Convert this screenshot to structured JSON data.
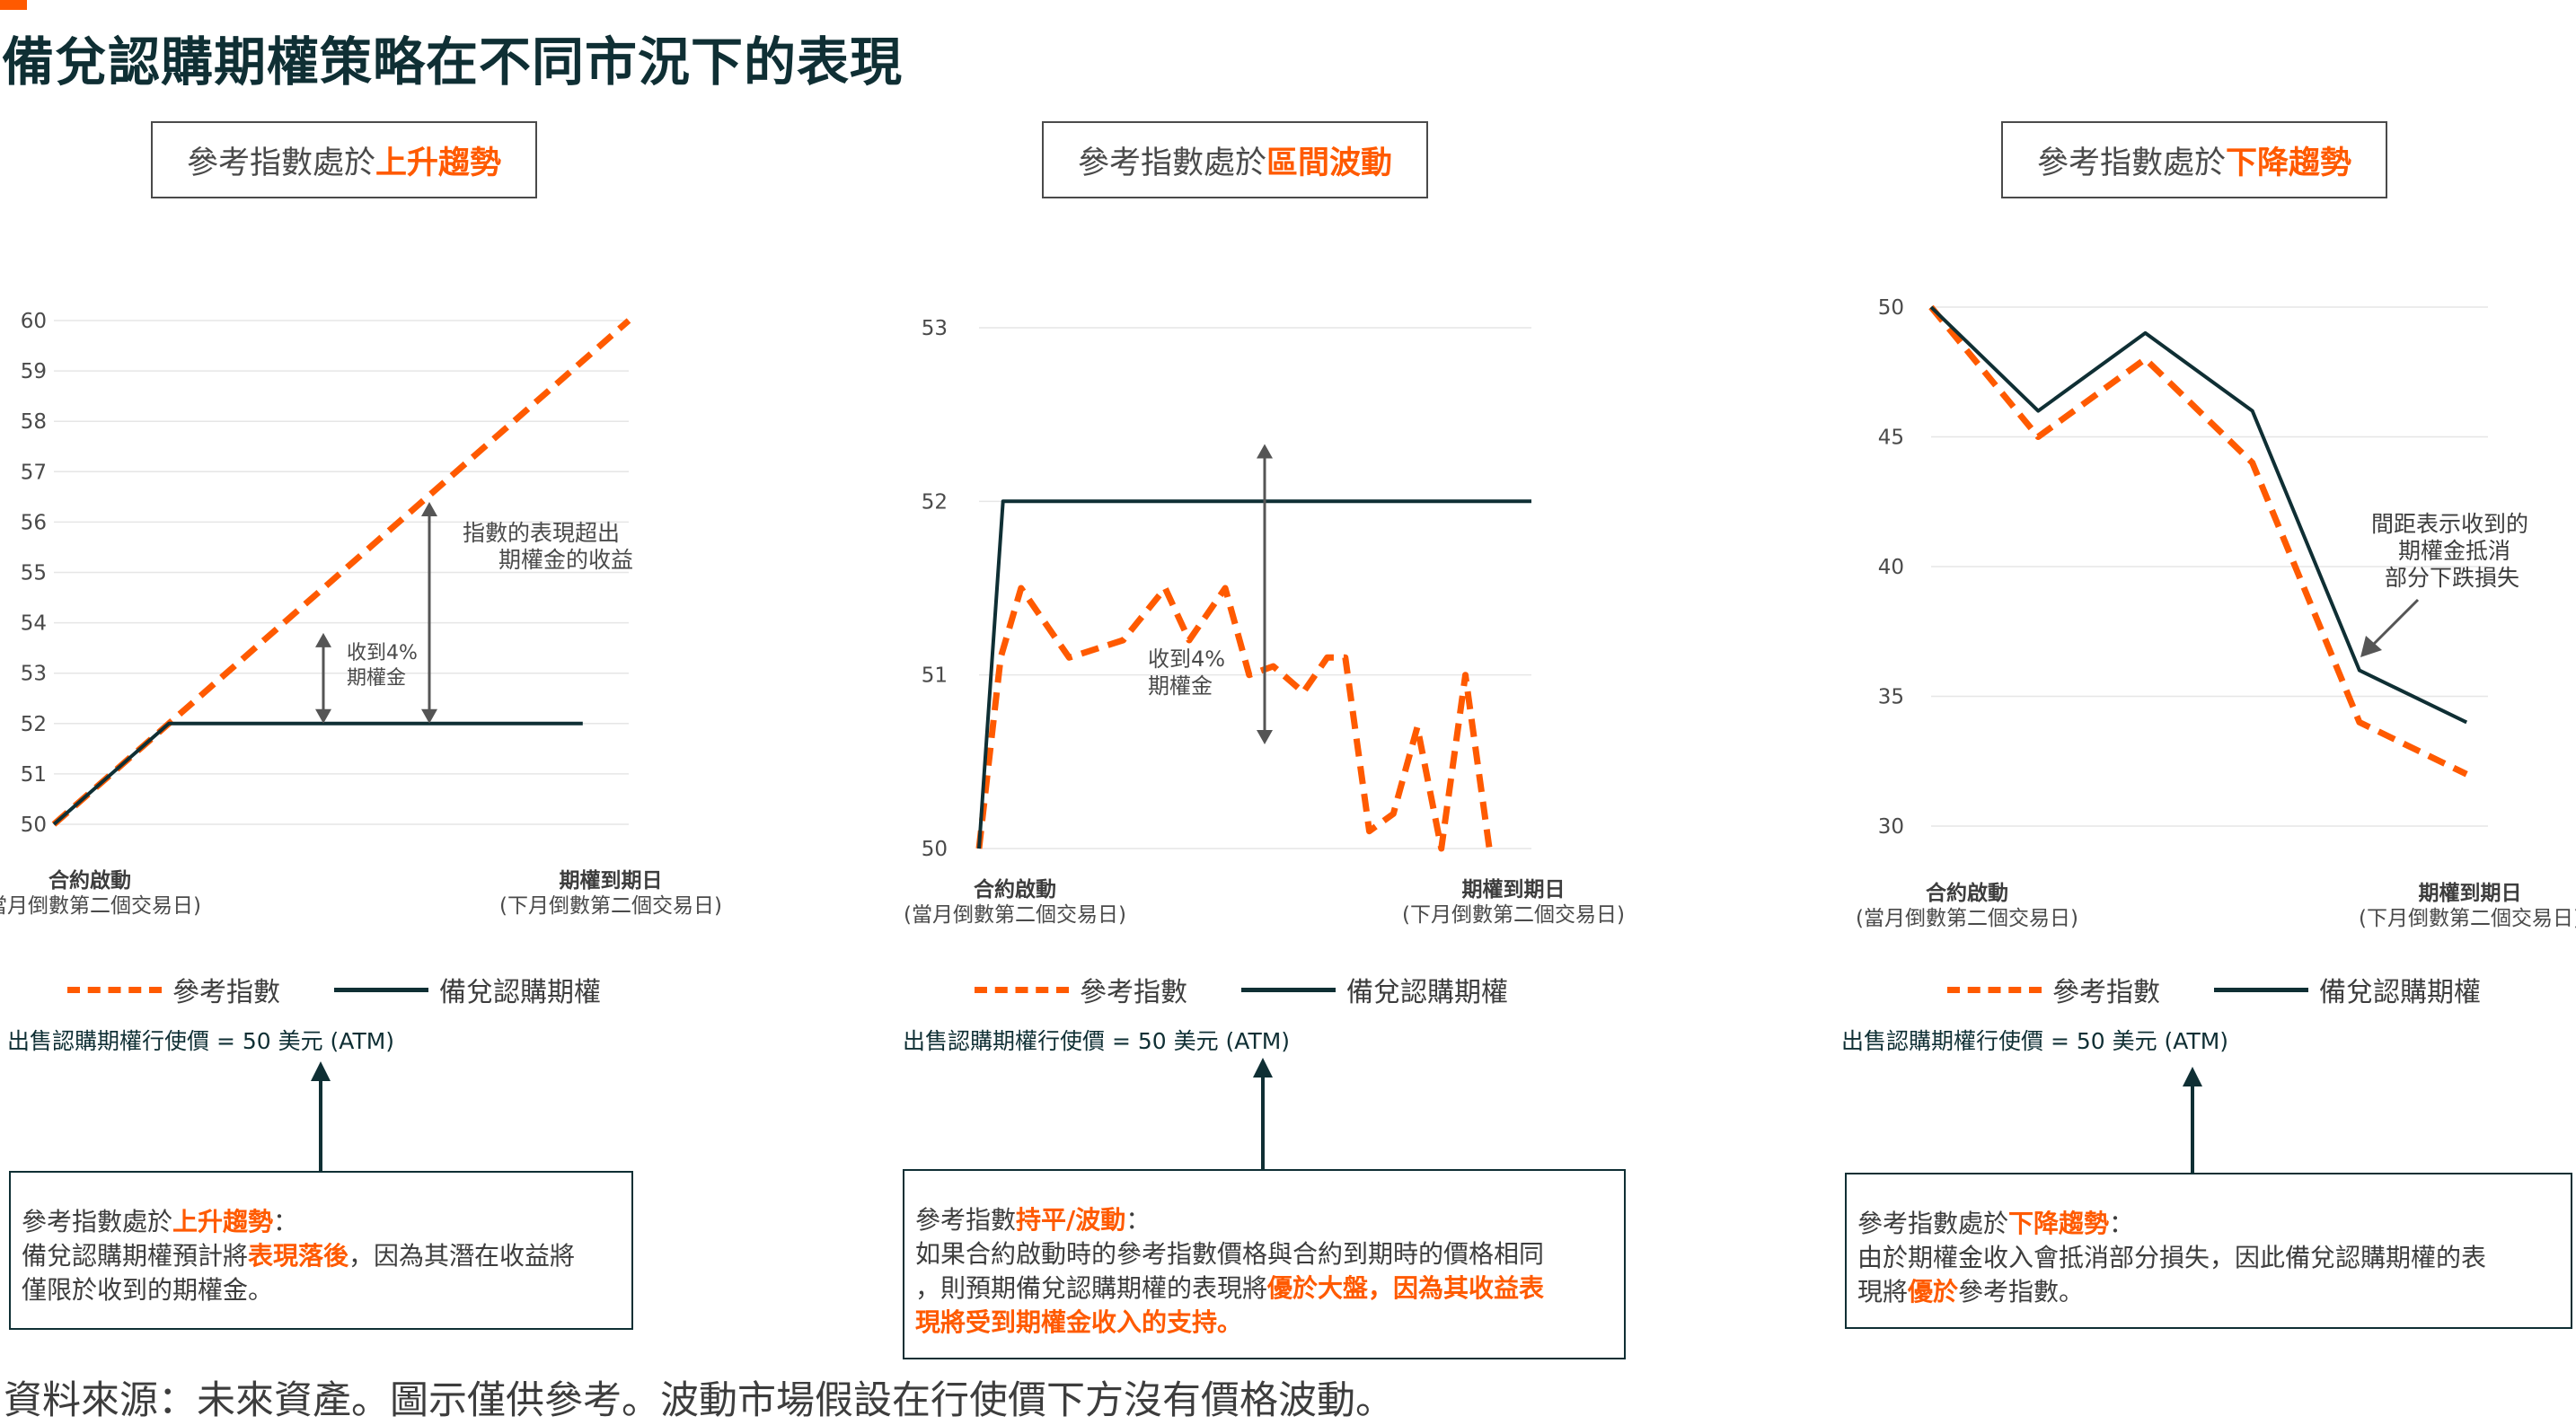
{
  "page": {
    "title": "備兌認購期權策略在不同市況下的表現",
    "footer": "資料來源：未來資產。圖示僅供參考。波動市場假設在行使價下方沒有價格波動。"
  },
  "colors": {
    "reference_index": "#ff5a00",
    "covered_call": "#0f2f34",
    "accent": "#ff5a00"
  },
  "legend": {
    "reference_index": "參考指數",
    "covered_call": "備兌認購期權"
  },
  "strike_label": "出售認購期權行使價 = 50 美元 (ATM)",
  "panels": [
    {
      "heading_prefix": "參考指數處於",
      "heading_highlight": "上升趨勢",
      "note_prefix": "參考指數處於",
      "note_highlight": "上升趨勢",
      "note_line2_prefix": "：",
      "note_line2_a": "備兌認購期權預計將",
      "note_line2_hl": "表現落後",
      "note_line2_b": "，因為其潛在收益將",
      "note_line3": "僅限於收到的期權金。"
    },
    {
      "heading_prefix": "參考指數處於",
      "heading_highlight": "區間波動",
      "note_prefix": "參考指數",
      "note_highlight": "持平/波動",
      "note_line2_prefix": "：",
      "note_line2_a": "如果合約啟動時的參考指數價格與合約到期時的價格相同",
      "note_line3_a": "，則預期備兌認購期權的表現將",
      "note_line3_hl": "優於大盤，因為其收益表",
      "note_line4_hl": "現將受到期權金收入的支持。"
    },
    {
      "heading_prefix": "參考指數處於",
      "heading_highlight": "下降趨勢",
      "note_prefix": "參考指數處於",
      "note_highlight": "下降趨勢",
      "note_line2_prefix": "：",
      "note_line2_a": "由於期權金收入會抵消部分損失，因此備兌認購期權的表",
      "note_line3_a": "現將",
      "note_line3_hl": "優於",
      "note_line3_b": "參考指數。"
    }
  ],
  "chart_data": [
    {
      "type": "line",
      "ylim": [
        50,
        60
      ],
      "yticks": [
        50,
        51,
        52,
        53,
        54,
        55,
        56,
        57,
        58,
        59,
        60
      ],
      "x_start_label": "合約啟動",
      "x_start_sublabel": "(當月倒數第二個交易日)",
      "x_end_label": "期權到期日",
      "x_end_sublabel": "(下月倒數第二個交易日)",
      "grid": true,
      "series": [
        {
          "name": "參考指數",
          "style": "dashed",
          "points": [
            [
              0,
              50
            ],
            [
              1,
              52
            ],
            [
              5,
              60
            ]
          ]
        },
        {
          "name": "備兌認購期權",
          "style": "solid",
          "points": [
            [
              0,
              50
            ],
            [
              1,
              52
            ],
            [
              4.6,
              52
            ]
          ]
        }
      ],
      "annotations": [
        {
          "text": [
            "收到4%",
            "期權金"
          ],
          "from": 52,
          "to": 53.8
        },
        {
          "text": [
            "指數的表現超出",
            "期權金的收益"
          ],
          "from": 52,
          "to": 56.4
        }
      ]
    },
    {
      "type": "line",
      "ylim": [
        50,
        53
      ],
      "yticks": [
        50,
        51,
        52,
        53
      ],
      "x_start_label": "合約啟動",
      "x_start_sublabel": "(當月倒數第二個交易日)",
      "x_end_label": "期權到期日",
      "x_end_sublabel": "(下月倒數第二個交易日)",
      "grid": true,
      "series": [
        {
          "name": "參考指數",
          "style": "dashed",
          "points": [
            [
              0,
              50
            ],
            [
              0.18,
              51.1
            ],
            [
              0.35,
              51.5
            ],
            [
              0.75,
              51.1
            ],
            [
              1.2,
              51.2
            ],
            [
              1.55,
              51.5
            ],
            [
              1.75,
              51.2
            ],
            [
              2.05,
              51.5
            ],
            [
              2.25,
              51.0
            ],
            [
              2.45,
              51.05
            ],
            [
              2.7,
              50.9
            ],
            [
              2.9,
              51.1
            ],
            [
              3.05,
              51.1
            ],
            [
              3.25,
              50.1
            ],
            [
              3.45,
              50.2
            ],
            [
              3.65,
              50.7
            ],
            [
              3.85,
              50.0
            ],
            [
              4.05,
              51.0
            ],
            [
              4.25,
              50.0
            ]
          ]
        },
        {
          "name": "備兌認購期權",
          "style": "solid",
          "points": [
            [
              0,
              50
            ],
            [
              0.2,
              52
            ],
            [
              4.6,
              52
            ]
          ]
        }
      ],
      "annotations": [
        {
          "text": [
            "收到4%",
            "期權金"
          ],
          "from": 50.6,
          "to": 52.33
        }
      ]
    },
    {
      "type": "line",
      "ylim": [
        30,
        50
      ],
      "yticks": [
        30,
        35,
        40,
        45,
        50
      ],
      "x_start_label": "合約啟動",
      "x_start_sublabel": "(當月倒數第二個交易日)",
      "x_end_label": "期權到期日",
      "x_end_sublabel": "(下月倒數第二個交易日)",
      "grid": true,
      "series": [
        {
          "name": "參考指數",
          "style": "dashed",
          "points": [
            [
              0,
              50
            ],
            [
              1,
              45
            ],
            [
              2,
              48
            ],
            [
              3,
              44
            ],
            [
              4,
              34
            ],
            [
              5,
              32
            ]
          ]
        },
        {
          "name": "備兌認購期權",
          "style": "solid",
          "points": [
            [
              0,
              50
            ],
            [
              1,
              46
            ],
            [
              2,
              49
            ],
            [
              3,
              46
            ],
            [
              4,
              36
            ],
            [
              5,
              34
            ]
          ]
        }
      ],
      "annotations": [
        {
          "text": [
            "間距表示收到的",
            "期權金抵消",
            "部分下跌損失"
          ]
        }
      ]
    }
  ]
}
